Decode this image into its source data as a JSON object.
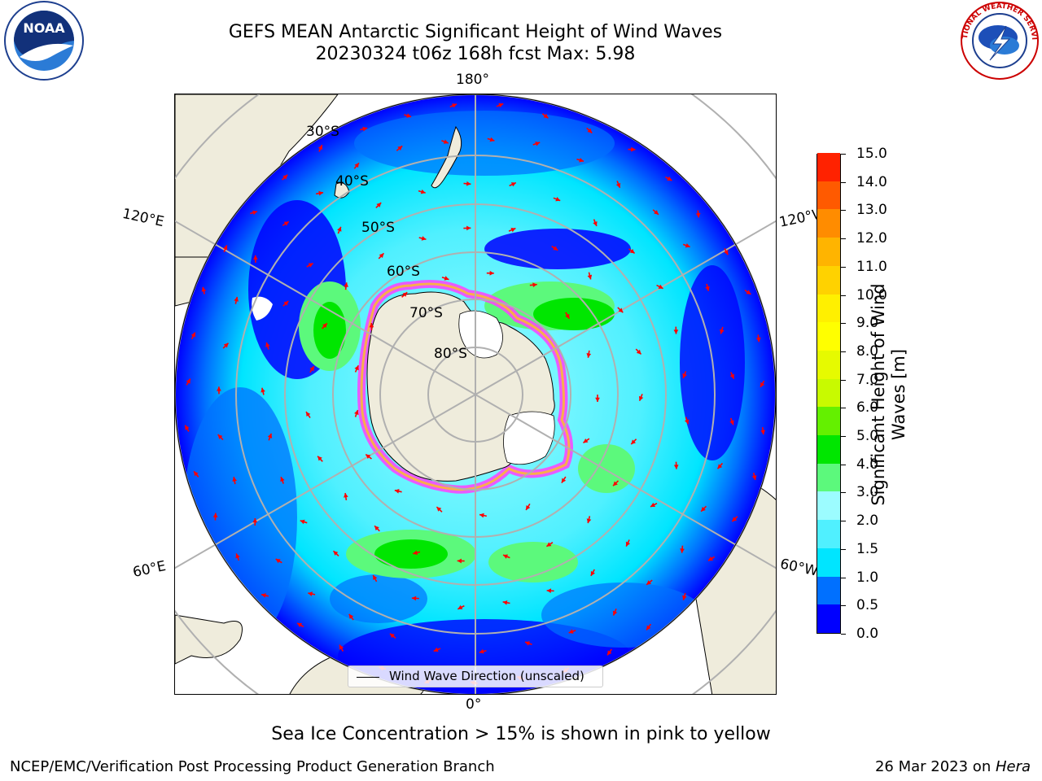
{
  "header": {
    "title_line1": "GEFS MEAN Antarctic Significant Height of Wind Waves",
    "title_line2": "20230324 t06z 168h fcst   Max: 5.98"
  },
  "logos": {
    "left": "NOAA",
    "right": "NATIONAL WEATHER SERVICE"
  },
  "map": {
    "projection": "south-polar-stereographic",
    "longitude_labels": {
      "top": "180°",
      "bottom": "0°",
      "upper_left": "120°E",
      "upper_right": "120°W",
      "lower_left": "60°E",
      "lower_right": "60°W"
    },
    "latitude_labels": [
      "30°S",
      "40°S",
      "50°S",
      "60°S",
      "70°S",
      "80°S"
    ],
    "legend_label": "Wind Wave Direction (unscaled)",
    "land_color": "#efecdc",
    "arrow_color": "#ff0000"
  },
  "colorbar": {
    "title": "Significant Height of Wind Waves [m]",
    "ticks": [
      "0.0",
      "0.5",
      "1.0",
      "1.5",
      "2.0",
      "3.0",
      "4.0",
      "5.0",
      "6.0",
      "7.0",
      "8.0",
      "9.0",
      "10.0",
      "11.0",
      "12.0",
      "13.0",
      "14.0",
      "15.0"
    ],
    "colors": [
      "#0000ff",
      "#0070ff",
      "#00e5ff",
      "#50f0ff",
      "#9cfcff",
      "#5cf97c",
      "#00e600",
      "#64f000",
      "#c8fa00",
      "#e6fa00",
      "#ffff00",
      "#fff000",
      "#ffd200",
      "#ffb400",
      "#ff8c00",
      "#ff5a00",
      "#ff2200"
    ]
  },
  "notes": {
    "sea_ice": "Sea Ice Concentration > 15% is shown in pink to yellow"
  },
  "footer": {
    "left": "NCEP/EMC/Verification Post Processing Product Generation Branch",
    "date": "26 Mar 2023 on ",
    "machine": "Hera"
  }
}
